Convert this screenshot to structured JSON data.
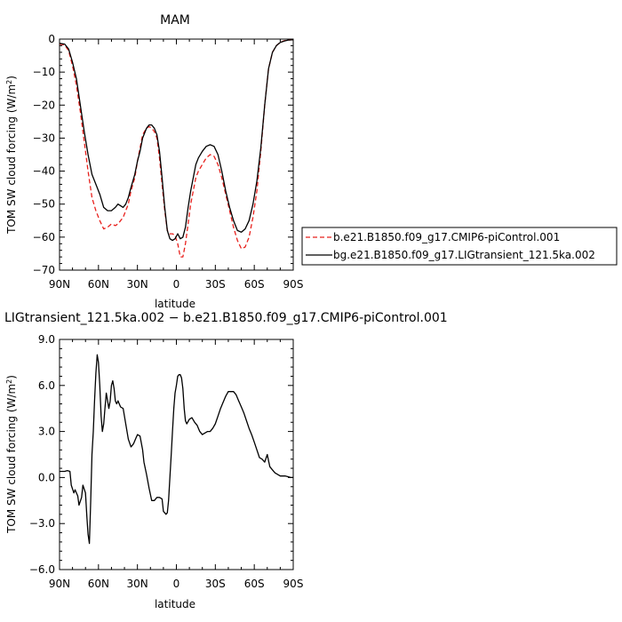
{
  "chart_data": [
    {
      "type": "line",
      "title": "MAM",
      "xlabel": "latitude",
      "ylabel": "TOM SW cloud forcing (W/m²)",
      "ylabel_main": "TOM SW cloud forcing (W/m",
      "ylabel_sup": "2",
      "ylabel_end": ")",
      "xlim": [
        90,
        -90
      ],
      "ylim": [
        -70,
        0
      ],
      "x_ticks": [
        90,
        60,
        30,
        0,
        -30,
        -60,
        -90
      ],
      "x_tick_labels": [
        "90N",
        "60N",
        "30N",
        "0",
        "30S",
        "60S",
        "90S"
      ],
      "y_ticks": [
        0,
        -10,
        -20,
        -30,
        -40,
        -50,
        -60,
        -70
      ],
      "y_tick_labels": [
        "0",
        "−10",
        "−20",
        "−30",
        "−40",
        "−50",
        "−60",
        "−70"
      ],
      "legend_position": "right",
      "series": [
        {
          "name": "b.e21.B1850.f09_g17.CMIP6-piControl.001",
          "color": "#e8201c",
          "dash": "dashed",
          "x": [
            90,
            86,
            83,
            80,
            77,
            74,
            71,
            68,
            65,
            62,
            59,
            56,
            53,
            50,
            47,
            45,
            43,
            41,
            39,
            37,
            35,
            32,
            30,
            28,
            26,
            23,
            21,
            19,
            17,
            15,
            13,
            11,
            9,
            7,
            5,
            3,
            1,
            -1,
            -3,
            -5,
            -7,
            -9,
            -11,
            -13,
            -15,
            -17,
            -20,
            -23,
            -26,
            -29,
            -32,
            -35,
            -38,
            -41,
            -44,
            -47,
            -50,
            -53,
            -56,
            -59,
            -62,
            -65,
            -68,
            -71,
            -74,
            -77,
            -80,
            -83,
            -86,
            -90
          ],
          "y": [
            -1.5,
            -1.8,
            -3.5,
            -8,
            -14,
            -22,
            -31,
            -40,
            -48,
            -52,
            -55,
            -57.5,
            -57,
            -56,
            -56.5,
            -56,
            -55,
            -54,
            -52,
            -50,
            -46,
            -42,
            -37,
            -33,
            -29,
            -27,
            -26.5,
            -27,
            -28,
            -30,
            -36,
            -44,
            -52,
            -58,
            -59,
            -59,
            -59.5,
            -62,
            -66,
            -66,
            -62,
            -56,
            -50,
            -46,
            -42,
            -40,
            -38,
            -36,
            -35,
            -35.5,
            -38,
            -42,
            -47,
            -52,
            -57,
            -61,
            -63.5,
            -63,
            -60,
            -54,
            -46,
            -34,
            -20,
            -9,
            -4,
            -2,
            -1,
            -0.5,
            -0.3,
            -0.2
          ]
        },
        {
          "name": "bg.e21.B1850.f09_g17.LIGtransient_121.5ka.002",
          "color": "#000000",
          "dash": "solid",
          "x": [
            90,
            86,
            83,
            80,
            77,
            74,
            71,
            68,
            65,
            62,
            59,
            56,
            53,
            50,
            47,
            45,
            43,
            41,
            39,
            37,
            35,
            32,
            30,
            28,
            26,
            23,
            21,
            19,
            17,
            15,
            13,
            11,
            9,
            7,
            5,
            3,
            1,
            -1,
            -3,
            -5,
            -7,
            -9,
            -11,
            -13,
            -15,
            -17,
            -20,
            -23,
            -26,
            -29,
            -32,
            -35,
            -38,
            -41,
            -44,
            -47,
            -50,
            -53,
            -56,
            -59,
            -62,
            -65,
            -68,
            -71,
            -74,
            -77,
            -80,
            -83,
            -86,
            -90
          ],
          "y": [
            -1.3,
            -1.5,
            -3,
            -7,
            -12,
            -20,
            -28,
            -35,
            -41,
            -44,
            -47,
            -51,
            -52,
            -52,
            -51,
            -50,
            -50.5,
            -51,
            -50,
            -48,
            -45,
            -41,
            -37,
            -34,
            -30,
            -27,
            -26,
            -26,
            -27,
            -29,
            -34,
            -42,
            -51,
            -58,
            -60.5,
            -61,
            -60.5,
            -59,
            -60.5,
            -60,
            -57,
            -51,
            -46,
            -42,
            -38,
            -36,
            -34,
            -32.5,
            -32,
            -32.5,
            -35,
            -40,
            -46,
            -51,
            -55,
            -58,
            -58.5,
            -57.5,
            -55,
            -50,
            -43,
            -33,
            -20,
            -9,
            -4,
            -2,
            -1,
            -0.6,
            -0.3,
            -0.2
          ]
        }
      ]
    },
    {
      "type": "line",
      "title": "LIGtransient_121.5ka.002 − b.e21.B1850.f09_g17.CMIP6-piControl.001",
      "xlabel": "latitude",
      "ylabel": "TOM SW cloud forcing (W/m²)",
      "ylabel_main": "TOM SW cloud forcing (W/m",
      "ylabel_sup": "2",
      "ylabel_end": ")",
      "xlim": [
        90,
        -90
      ],
      "ylim": [
        -6,
        9
      ],
      "x_ticks": [
        90,
        60,
        30,
        0,
        -30,
        -60,
        -90
      ],
      "x_tick_labels": [
        "90N",
        "60N",
        "30N",
        "0",
        "30S",
        "60S",
        "90S"
      ],
      "y_ticks": [
        9,
        6,
        3,
        0,
        -3,
        -6
      ],
      "y_tick_labels": [
        "9.0",
        "6.0",
        "3.0",
        "0.0",
        "−3.0",
        "−6.0"
      ],
      "series": [
        {
          "color": "#000000",
          "x": [
            90,
            88,
            86,
            84,
            82,
            81,
            79,
            78,
            76,
            75,
            73,
            72,
            70,
            69,
            68,
            67,
            66,
            65,
            64,
            63,
            62,
            61,
            60,
            59,
            58,
            57,
            56,
            55,
            54,
            53,
            52,
            51,
            50,
            49,
            48,
            47,
            46,
            45,
            44,
            43,
            41,
            39,
            37,
            35,
            33,
            31,
            30,
            28,
            26,
            25,
            23,
            21,
            19,
            17,
            15,
            13,
            11,
            10,
            8,
            7,
            6,
            5,
            4,
            3,
            2,
            1,
            0,
            -1,
            -2,
            -3,
            -4,
            -5,
            -6,
            -7,
            -8,
            -10,
            -12,
            -14,
            -16,
            -18,
            -20,
            -22,
            -24,
            -26,
            -28,
            -30,
            -32,
            -34,
            -36,
            -38,
            -40,
            -42,
            -44,
            -46,
            -48,
            -50,
            -52,
            -54,
            -56,
            -58,
            -60,
            -62,
            -64,
            -66,
            -68,
            -70,
            -71,
            -72,
            -74,
            -76,
            -78,
            -80,
            -82,
            -84,
            -86,
            -88,
            -90
          ],
          "y": [
            0.4,
            0.4,
            0.4,
            0.45,
            0.4,
            -0.5,
            -1.0,
            -0.8,
            -1.2,
            -1.8,
            -1.3,
            -0.5,
            -1.0,
            -2.5,
            -3.7,
            -4.3,
            -1.5,
            1.5,
            3.0,
            5.0,
            6.8,
            8.0,
            7.5,
            6.0,
            4.0,
            3.0,
            3.5,
            4.5,
            5.5,
            5.0,
            4.5,
            5.0,
            6.0,
            6.3,
            5.8,
            5.0,
            4.8,
            5.0,
            4.8,
            4.6,
            4.5,
            3.5,
            2.5,
            2.0,
            2.2,
            2.6,
            2.8,
            2.7,
            1.8,
            1.0,
            0.2,
            -0.7,
            -1.5,
            -1.5,
            -1.3,
            -1.3,
            -1.4,
            -2.2,
            -2.4,
            -2.3,
            -1.5,
            0.0,
            1.5,
            3.0,
            4.5,
            5.5,
            6.0,
            6.6,
            6.7,
            6.7,
            6.5,
            5.8,
            4.5,
            3.7,
            3.5,
            3.8,
            3.9,
            3.6,
            3.4,
            3.0,
            2.8,
            2.9,
            3.0,
            3.0,
            3.2,
            3.5,
            4.0,
            4.5,
            4.9,
            5.3,
            5.6,
            5.6,
            5.6,
            5.4,
            5.0,
            4.6,
            4.2,
            3.7,
            3.2,
            2.8,
            2.3,
            1.8,
            1.3,
            1.2,
            1.0,
            1.5,
            1.1,
            0.7,
            0.5,
            0.3,
            0.2,
            0.1,
            0.1,
            0.1,
            0.05,
            0.0,
            0.0
          ]
        }
      ]
    }
  ]
}
